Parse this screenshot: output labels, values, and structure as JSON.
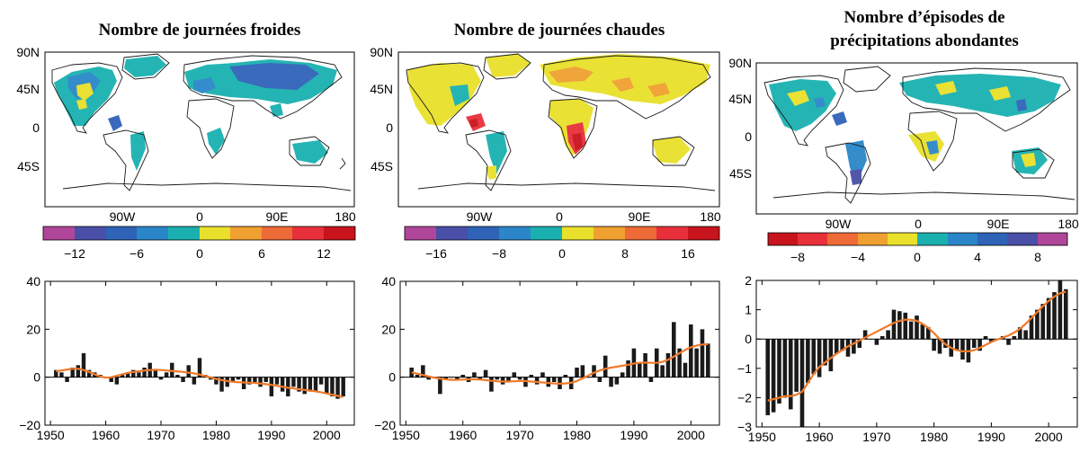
{
  "panels": [
    {
      "title_lines": [
        "Nombre de journées froides"
      ],
      "map": {
        "lat_labels": [
          "90N",
          "45N",
          "0",
          "45S"
        ],
        "lon_labels": [
          "90W",
          "0",
          "90E",
          "180"
        ]
      },
      "colorbar": {
        "colors": [
          "#b0469a",
          "#4a4fa8",
          "#2f63b8",
          "#2a86c8",
          "#1ab0b0",
          "#e8e02a",
          "#f0a030",
          "#ee6a36",
          "#e8303a",
          "#c8141c"
        ],
        "tick_labels": [
          "−12",
          "−6",
          "0",
          "6",
          "12"
        ]
      }
    },
    {
      "title_lines": [
        "Nombre de journées chaudes"
      ],
      "map": {
        "lat_labels": [
          "90N",
          "45N",
          "0",
          "45S"
        ],
        "lon_labels": [
          "90W",
          "0",
          "90E",
          "180"
        ]
      },
      "colorbar": {
        "colors": [
          "#b0469a",
          "#4a4fa8",
          "#2f63b8",
          "#2a86c8",
          "#1ab0b0",
          "#e8e02a",
          "#f0a030",
          "#ee6a36",
          "#e8303a",
          "#c8141c"
        ],
        "tick_labels": [
          "−16",
          "−8",
          "0",
          "8",
          "16"
        ]
      }
    },
    {
      "title_lines": [
        "Nombre d’épisodes de",
        "précipitations abondantes"
      ],
      "map": {
        "lat_labels": [
          "90N",
          "45N",
          "0",
          "45S"
        ],
        "lon_labels": [
          "90W",
          "0",
          "90E",
          "180"
        ]
      },
      "colorbar": {
        "colors": [
          "#c8141c",
          "#e8303a",
          "#ee6a36",
          "#f0a030",
          "#e8e02a",
          "#1ab0b0",
          "#2a86c8",
          "#2f63b8",
          "#4a4fa8",
          "#b0469a"
        ],
        "tick_labels": [
          "−8",
          "−4",
          "0",
          "4",
          "8"
        ]
      }
    }
  ],
  "chart_data": [
    {
      "type": "bar",
      "x": [
        1951,
        1952,
        1953,
        1954,
        1955,
        1956,
        1957,
        1958,
        1959,
        1960,
        1961,
        1962,
        1963,
        1964,
        1965,
        1966,
        1967,
        1968,
        1969,
        1970,
        1971,
        1972,
        1973,
        1974,
        1975,
        1976,
        1977,
        1978,
        1979,
        1980,
        1981,
        1982,
        1983,
        1984,
        1985,
        1986,
        1987,
        1988,
        1989,
        1990,
        1991,
        1992,
        1993,
        1994,
        1995,
        1996,
        1997,
        1998,
        1999,
        2000,
        2001,
        2002,
        2003
      ],
      "values": [
        3,
        2,
        -2,
        4,
        5,
        10,
        3,
        2,
        1,
        0,
        -2,
        -3,
        1,
        2,
        3,
        2,
        4,
        6,
        3,
        -1,
        2,
        6,
        1,
        -2,
        5,
        -3,
        8,
        1,
        -1,
        -3,
        -6,
        -4,
        -2,
        -1,
        -5,
        -3,
        -2,
        -4,
        -2,
        -8,
        -3,
        -6,
        -8,
        -4,
        -6,
        -7,
        -6,
        -6,
        -3,
        -7,
        -8,
        -9,
        -8
      ],
      "smooth": [
        2.5,
        2.8,
        3.2,
        3.5,
        3.5,
        3.0,
        2.2,
        1.2,
        0.3,
        -0.2,
        0.0,
        0.6,
        1.2,
        1.8,
        2.2,
        2.5,
        2.8,
        3.0,
        3.1,
        3.0,
        2.8,
        2.6,
        2.4,
        2.2,
        1.9,
        1.6,
        1.1,
        0.5,
        -0.1,
        -0.7,
        -1.2,
        -1.6,
        -1.9,
        -2.1,
        -2.2,
        -2.3,
        -2.4,
        -2.6,
        -2.9,
        -3.2,
        -3.6,
        -4.0,
        -4.4,
        -4.7,
        -5.0,
        -5.3,
        -5.6,
        -5.9,
        -6.3,
        -6.8,
        -7.3,
        -7.8,
        -8.3
      ],
      "smooth_color": "#f07a2a",
      "bar_color": "#1a1a1a",
      "ylim": [
        -20,
        40
      ],
      "yticks": [
        -20,
        0,
        20,
        40
      ],
      "xlim": [
        1949,
        2005
      ],
      "xticks": [
        1950,
        1960,
        1970,
        1980,
        1990,
        2000
      ]
    },
    {
      "type": "bar",
      "x": [
        1951,
        1952,
        1953,
        1954,
        1955,
        1956,
        1957,
        1958,
        1959,
        1960,
        1961,
        1962,
        1963,
        1964,
        1965,
        1966,
        1967,
        1968,
        1969,
        1970,
        1971,
        1972,
        1973,
        1974,
        1975,
        1976,
        1977,
        1978,
        1979,
        1980,
        1981,
        1982,
        1983,
        1984,
        1985,
        1986,
        1987,
        1988,
        1989,
        1990,
        1991,
        1992,
        1993,
        1994,
        1995,
        1996,
        1997,
        1998,
        1999,
        2000,
        2001,
        2002,
        2003
      ],
      "values": [
        4,
        1,
        5,
        -1,
        0,
        -7,
        -1,
        0,
        -1,
        1,
        -2,
        2,
        -1,
        3,
        -6,
        -1,
        -3,
        -2,
        2,
        -1,
        -4,
        1,
        -3,
        2,
        -4,
        -2,
        -5,
        1,
        -5,
        4,
        5,
        0,
        5,
        -2,
        9,
        -4,
        -3,
        2,
        7,
        12,
        6,
        10,
        -2,
        12,
        5,
        10,
        23,
        12,
        6,
        22,
        12,
        20,
        14
      ],
      "smooth": [
        2.0,
        1.5,
        0.9,
        0.3,
        -0.2,
        -0.6,
        -0.9,
        -1.1,
        -1.1,
        -1.0,
        -0.9,
        -0.9,
        -1.0,
        -1.2,
        -1.5,
        -1.7,
        -1.8,
        -1.8,
        -1.7,
        -1.6,
        -1.6,
        -1.8,
        -2.0,
        -2.2,
        -2.4,
        -2.6,
        -2.7,
        -2.6,
        -2.3,
        -1.6,
        -0.5,
        0.7,
        1.9,
        2.8,
        3.5,
        4.0,
        4.4,
        4.8,
        5.2,
        5.7,
        6.0,
        6.1,
        6.0,
        6.0,
        6.4,
        7.3,
        8.6,
        10.0,
        11.4,
        12.5,
        13.2,
        13.6,
        13.8
      ],
      "smooth_color": "#f07a2a",
      "bar_color": "#1a1a1a",
      "ylim": [
        -20,
        40
      ],
      "yticks": [
        -20,
        0,
        20,
        40
      ],
      "xlim": [
        1949,
        2005
      ],
      "xticks": [
        1950,
        1960,
        1970,
        1980,
        1990,
        2000
      ]
    },
    {
      "type": "bar",
      "x": [
        1951,
        1952,
        1953,
        1954,
        1955,
        1956,
        1957,
        1958,
        1959,
        1960,
        1961,
        1962,
        1963,
        1964,
        1965,
        1966,
        1967,
        1968,
        1969,
        1970,
        1971,
        1972,
        1973,
        1974,
        1975,
        1976,
        1977,
        1978,
        1979,
        1980,
        1981,
        1982,
        1983,
        1984,
        1985,
        1986,
        1987,
        1988,
        1989,
        1990,
        1991,
        1992,
        1993,
        1994,
        1995,
        1996,
        1997,
        1998,
        1999,
        2000,
        2001,
        2002,
        2003
      ],
      "values": [
        -2.6,
        -2.5,
        -2.2,
        -2.0,
        -2.4,
        -1.8,
        -3.0,
        -1.5,
        -1.2,
        -1.3,
        -0.9,
        -1.1,
        -0.5,
        -0.4,
        -0.6,
        -0.5,
        -0.3,
        0.3,
        0.0,
        -0.2,
        0.1,
        0.3,
        1.0,
        0.95,
        0.9,
        0.6,
        0.8,
        0.5,
        0.4,
        -0.4,
        -0.5,
        -0.3,
        -0.6,
        -0.4,
        -0.7,
        -0.8,
        -0.3,
        -0.4,
        0.1,
        -0.1,
        0.0,
        0.1,
        -0.2,
        0.1,
        0.4,
        0.3,
        0.8,
        1.0,
        1.2,
        1.4,
        1.6,
        2.0,
        1.7
      ],
      "smooth": [
        -2.1,
        -2.05,
        -2.0,
        -1.95,
        -1.95,
        -1.9,
        -1.8,
        -1.5,
        -1.2,
        -0.95,
        -0.8,
        -0.65,
        -0.5,
        -0.38,
        -0.25,
        -0.15,
        -0.05,
        0.05,
        0.15,
        0.25,
        0.35,
        0.45,
        0.55,
        0.62,
        0.66,
        0.66,
        0.62,
        0.52,
        0.38,
        0.2,
        0.0,
        -0.18,
        -0.3,
        -0.38,
        -0.42,
        -0.42,
        -0.38,
        -0.3,
        -0.2,
        -0.1,
        -0.02,
        0.05,
        0.12,
        0.22,
        0.35,
        0.52,
        0.72,
        0.92,
        1.12,
        1.3,
        1.45,
        1.56,
        1.62
      ],
      "smooth_color": "#f07a2a",
      "bar_color": "#1a1a1a",
      "ylim": [
        -3,
        2
      ],
      "yticks": [
        -3,
        -2,
        -1,
        0,
        1,
        2
      ],
      "xlim": [
        1949,
        2005
      ],
      "xticks": [
        1950,
        1960,
        1970,
        1980,
        1990,
        2000
      ]
    }
  ]
}
